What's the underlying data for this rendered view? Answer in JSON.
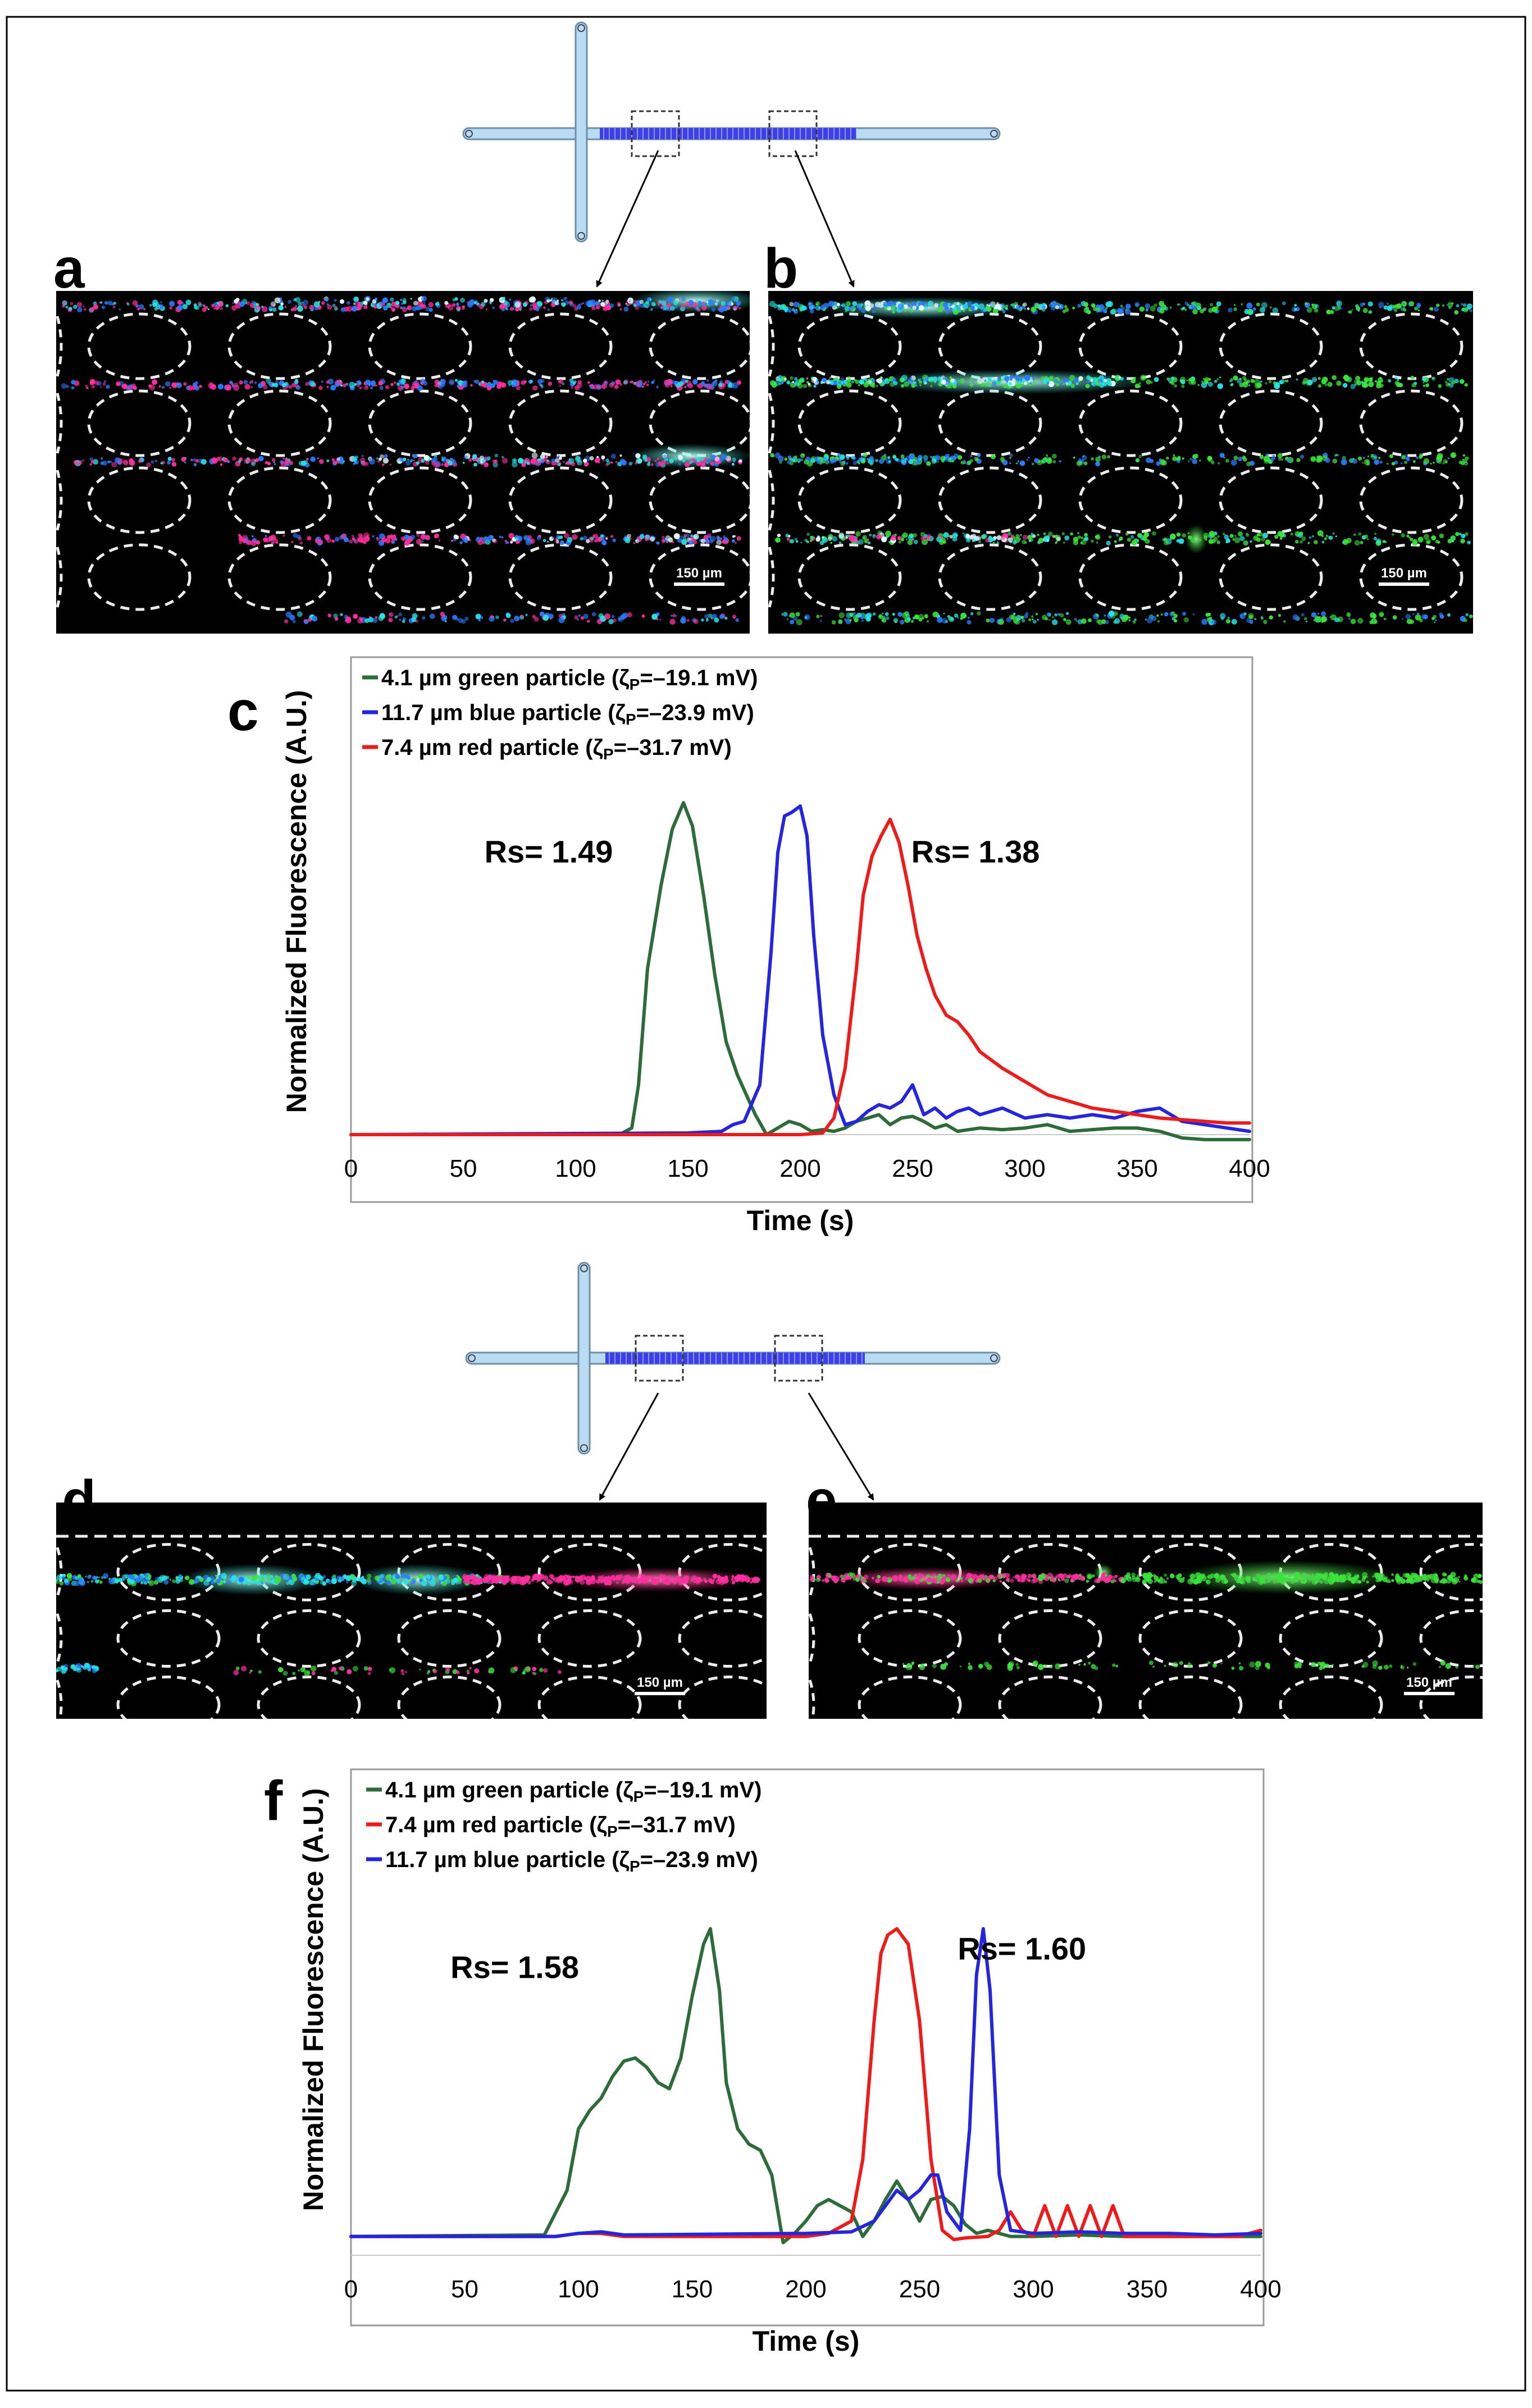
{
  "panel_letters": {
    "a": "a",
    "b": "b",
    "c": "c",
    "d": "d",
    "e": "e",
    "f": "f"
  },
  "scale_bar": "150 µm",
  "colors": {
    "green": "#2e6b3a",
    "blue": "#2525e0",
    "red": "#ee1b1b",
    "channel": "#b9dcf2",
    "channel_edge": "#6d8ea6",
    "pillar_band": "#3c40e6"
  },
  "chart_data": [
    {
      "id": "c",
      "type": "line",
      "xlabel": "Time (s)",
      "ylabel": "Normalized Fluorescence (A.U.)",
      "xlim": [
        0,
        400
      ],
      "xticks": [
        "0",
        "50",
        "100",
        "150",
        "200",
        "250",
        "300",
        "350",
        "400"
      ],
      "ylim": [
        0,
        1.1
      ],
      "annotations": [
        {
          "text": "Rs= 1.49",
          "x": 88,
          "y": 0.82
        },
        {
          "text": "Rs= 1.38",
          "x": 278,
          "y": 0.82
        }
      ],
      "series": [
        {
          "name": "4.1 µm green particle (ζ",
          "sub": "P",
          "suffix": "=–19.1 mV)",
          "color": "#2e6b3a",
          "x": [
            0,
            100,
            120,
            125,
            128,
            132,
            138,
            143,
            148,
            152,
            157,
            162,
            167,
            172,
            176,
            180,
            185,
            190,
            195,
            200,
            205,
            210,
            215,
            220,
            225,
            230,
            235,
            240,
            245,
            250,
            255,
            260,
            265,
            270,
            280,
            290,
            300,
            310,
            320,
            330,
            340,
            350,
            360,
            370,
            380,
            400
          ],
          "y": [
            0,
            0,
            0.002,
            0.02,
            0.15,
            0.5,
            0.75,
            0.92,
            1.0,
            0.93,
            0.72,
            0.48,
            0.28,
            0.18,
            0.12,
            0.06,
            0.0,
            0.02,
            0.04,
            0.03,
            0.01,
            0.015,
            0.01,
            0.02,
            0.04,
            0.05,
            0.06,
            0.03,
            0.05,
            0.055,
            0.04,
            0.02,
            0.03,
            0.01,
            0.02,
            0.015,
            0.02,
            0.03,
            0.01,
            0.015,
            0.02,
            0.02,
            0.01,
            -0.01,
            -0.015,
            -0.015
          ]
        },
        {
          "name": "11.7 µm blue particle (ζ",
          "sub": "P",
          "suffix": "=–23.9 mV)",
          "color": "#2525e0",
          "x": [
            0,
            150,
            165,
            170,
            175,
            182,
            187,
            190,
            193,
            196,
            198,
            200,
            203,
            206,
            210,
            215,
            220,
            225,
            230,
            235,
            240,
            245,
            250,
            255,
            260,
            265,
            270,
            275,
            280,
            290,
            300,
            310,
            320,
            330,
            340,
            350,
            360,
            370,
            400
          ],
          "y": [
            0,
            0.005,
            0.01,
            0.03,
            0.04,
            0.15,
            0.55,
            0.85,
            0.96,
            0.97,
            0.98,
            0.99,
            0.9,
            0.6,
            0.3,
            0.12,
            0.03,
            0.04,
            0.07,
            0.09,
            0.08,
            0.1,
            0.15,
            0.06,
            0.08,
            0.05,
            0.07,
            0.08,
            0.06,
            0.08,
            0.05,
            0.06,
            0.05,
            0.06,
            0.05,
            0.07,
            0.08,
            0.04,
            0.01
          ]
        },
        {
          "name": "7.4 µm red particle (ζ",
          "sub": "P",
          "suffix": "=–31.7 mV)",
          "color": "#ee1b1b",
          "x": [
            0,
            200,
            210,
            215,
            220,
            225,
            228,
            232,
            236,
            240,
            244,
            248,
            252,
            256,
            260,
            265,
            270,
            275,
            280,
            290,
            300,
            310,
            320,
            330,
            340,
            350,
            360,
            370,
            380,
            390,
            400
          ],
          "y": [
            0,
            0,
            0.005,
            0.05,
            0.2,
            0.5,
            0.72,
            0.84,
            0.9,
            0.95,
            0.88,
            0.75,
            0.6,
            0.5,
            0.42,
            0.36,
            0.34,
            0.3,
            0.25,
            0.2,
            0.16,
            0.12,
            0.1,
            0.08,
            0.07,
            0.06,
            0.05,
            0.045,
            0.04,
            0.035,
            0.035
          ]
        }
      ]
    },
    {
      "id": "f",
      "type": "line",
      "xlabel": "Time (s)",
      "ylabel": "Normalized Fluorescence (A.U.)",
      "xlim": [
        0,
        400
      ],
      "xticks": [
        "0",
        "50",
        "100",
        "150",
        "200",
        "250",
        "300",
        "350",
        "400"
      ],
      "ylim": [
        -0.05,
        1.08
      ],
      "annotations": [
        {
          "text": "Rs= 1.58",
          "x": 72,
          "y": 0.84
        },
        {
          "text": "Rs= 1.60",
          "x": 295,
          "y": 0.9
        }
      ],
      "series": [
        {
          "name": "4.1 µm green particle  (ζ",
          "sub": "P",
          "suffix": "=–19.1 mV)",
          "color": "#2e6b3a",
          "x": [
            0,
            85,
            95,
            100,
            105,
            110,
            115,
            120,
            125,
            130,
            135,
            140,
            145,
            150,
            155,
            158,
            162,
            165,
            170,
            175,
            180,
            185,
            190,
            195,
            200,
            205,
            210,
            215,
            220,
            225,
            230,
            235,
            240,
            245,
            250,
            255,
            260,
            265,
            270,
            275,
            280,
            290,
            300,
            320,
            340,
            360,
            380,
            400
          ],
          "y": [
            0,
            0.005,
            0.15,
            0.35,
            0.41,
            0.45,
            0.52,
            0.57,
            0.58,
            0.55,
            0.5,
            0.48,
            0.58,
            0.78,
            0.95,
            1.0,
            0.8,
            0.5,
            0.35,
            0.3,
            0.28,
            0.2,
            -0.02,
            0.01,
            0.05,
            0.1,
            0.12,
            0.1,
            0.08,
            0.0,
            0.05,
            0.12,
            0.18,
            0.12,
            0.05,
            0.12,
            0.13,
            0.1,
            0.04,
            0.01,
            0.02,
            0.0,
            0.0,
            0.005,
            0.0,
            0.0,
            0.0,
            0.0
          ]
        },
        {
          "name": "7.4 µm red particle  (ζ",
          "sub": "P",
          "suffix": "=–31.7 mV)",
          "color": "#ee1b1b",
          "x": [
            0,
            90,
            100,
            110,
            120,
            200,
            210,
            220,
            225,
            230,
            233,
            236,
            240,
            245,
            250,
            255,
            260,
            265,
            270,
            280,
            285,
            290,
            295,
            300,
            305,
            310,
            315,
            320,
            325,
            330,
            335,
            340,
            345,
            350,
            370,
            390,
            400
          ],
          "y": [
            0,
            0,
            0.01,
            0.01,
            0.0,
            0.0,
            0.01,
            0.05,
            0.25,
            0.7,
            0.92,
            0.98,
            1.0,
            0.95,
            0.7,
            0.25,
            0.02,
            -0.01,
            -0.005,
            0.0,
            0.02,
            0.08,
            0.02,
            0.0,
            0.1,
            0.0,
            0.1,
            0.0,
            0.1,
            0.0,
            0.1,
            0.0,
            0.0,
            0.0,
            0.0,
            0.0,
            0.02
          ]
        },
        {
          "name": "11.7 µm blue particle (ζ",
          "sub": "P",
          "suffix": "=–23.9 mV)",
          "color": "#2525e0",
          "x": [
            0,
            90,
            100,
            110,
            120,
            200,
            220,
            230,
            235,
            240,
            245,
            250,
            255,
            258,
            262,
            268,
            272,
            275,
            278,
            281,
            285,
            290,
            300,
            320,
            340,
            360,
            380,
            400
          ],
          "y": [
            0,
            0,
            0.01,
            0.015,
            0.005,
            0.01,
            0.015,
            0.05,
            0.1,
            0.15,
            0.12,
            0.15,
            0.2,
            0.2,
            0.08,
            0.02,
            0.35,
            0.85,
            1.0,
            0.8,
            0.2,
            0.02,
            0.01,
            0.015,
            0.01,
            0.01,
            0.005,
            0.01
          ]
        }
      ]
    }
  ]
}
